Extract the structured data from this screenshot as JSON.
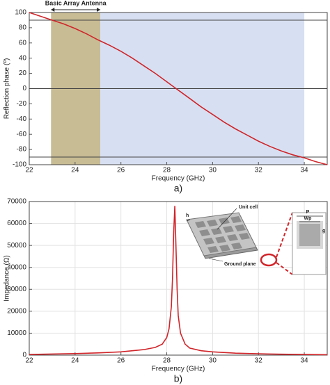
{
  "chart_data": [
    {
      "type": "line",
      "ylabel": "Reflection phase (º)",
      "xlabel": "Frequency (GHz)",
      "caption": "a)",
      "xlim": [
        22,
        35
      ],
      "xticks": [
        22,
        24,
        26,
        28,
        30,
        32,
        34
      ],
      "ylim": [
        -100,
        100
      ],
      "yticks": [
        -100,
        -80,
        -60,
        -40,
        -20,
        0,
        20,
        40,
        60,
        80,
        100
      ],
      "grid": false,
      "bands": [
        {
          "from": 22.95,
          "to": 25.1,
          "color": "#c8bc94"
        },
        {
          "from": 25.1,
          "to": 34,
          "color": "#d7e0f2"
        }
      ],
      "hlines": [
        90,
        0,
        -90
      ],
      "annotation": "Basic Array Antenna",
      "x": [
        22,
        22.5,
        23,
        23.5,
        24,
        24.5,
        25,
        25.5,
        26,
        26.5,
        27,
        27.5,
        28,
        28.5,
        29,
        29.5,
        30,
        30.5,
        31,
        31.5,
        32,
        32.5,
        33,
        33.5,
        34,
        34.5,
        35
      ],
      "series": [
        {
          "color": "#d0252a",
          "values": [
            100,
            95,
            90,
            85,
            79,
            72,
            64,
            57,
            49,
            40,
            30,
            20,
            9,
            -2,
            -13,
            -24,
            -34,
            -44,
            -53,
            -61,
            -69,
            -76,
            -82,
            -87,
            -91,
            -96,
            -100
          ]
        }
      ]
    },
    {
      "type": "line",
      "ylabel": "Impedance (Ω)",
      "xlabel": "Frequency (GHz)",
      "caption": "b)",
      "xlim": [
        22,
        35
      ],
      "xticks": [
        22,
        24,
        26,
        28,
        30,
        32,
        34
      ],
      "ylim": [
        0,
        70000
      ],
      "yticks": [
        0,
        10000,
        20000,
        30000,
        40000,
        50000,
        60000,
        70000
      ],
      "grid": true,
      "inset_labels": [
        "Unit cell",
        "Ground plane",
        "h",
        "P",
        "Wp",
        "g"
      ],
      "x": [
        22,
        23,
        24,
        25,
        26,
        27,
        27.5,
        27.8,
        28,
        28.1,
        28.2,
        28.25,
        28.3,
        28.35,
        28.4,
        28.45,
        28.5,
        28.6,
        28.8,
        29,
        29.5,
        30,
        31,
        32,
        33,
        34,
        35
      ],
      "series": [
        {
          "color": "#d0252a",
          "values": [
            300,
            500,
            700,
            1000,
            1500,
            2500,
            3500,
            5000,
            8000,
            12000,
            22000,
            35000,
            55000,
            68000,
            50000,
            30000,
            18000,
            10000,
            5000,
            3200,
            2000,
            1500,
            900,
            600,
            400,
            300,
            200
          ]
        }
      ]
    }
  ]
}
